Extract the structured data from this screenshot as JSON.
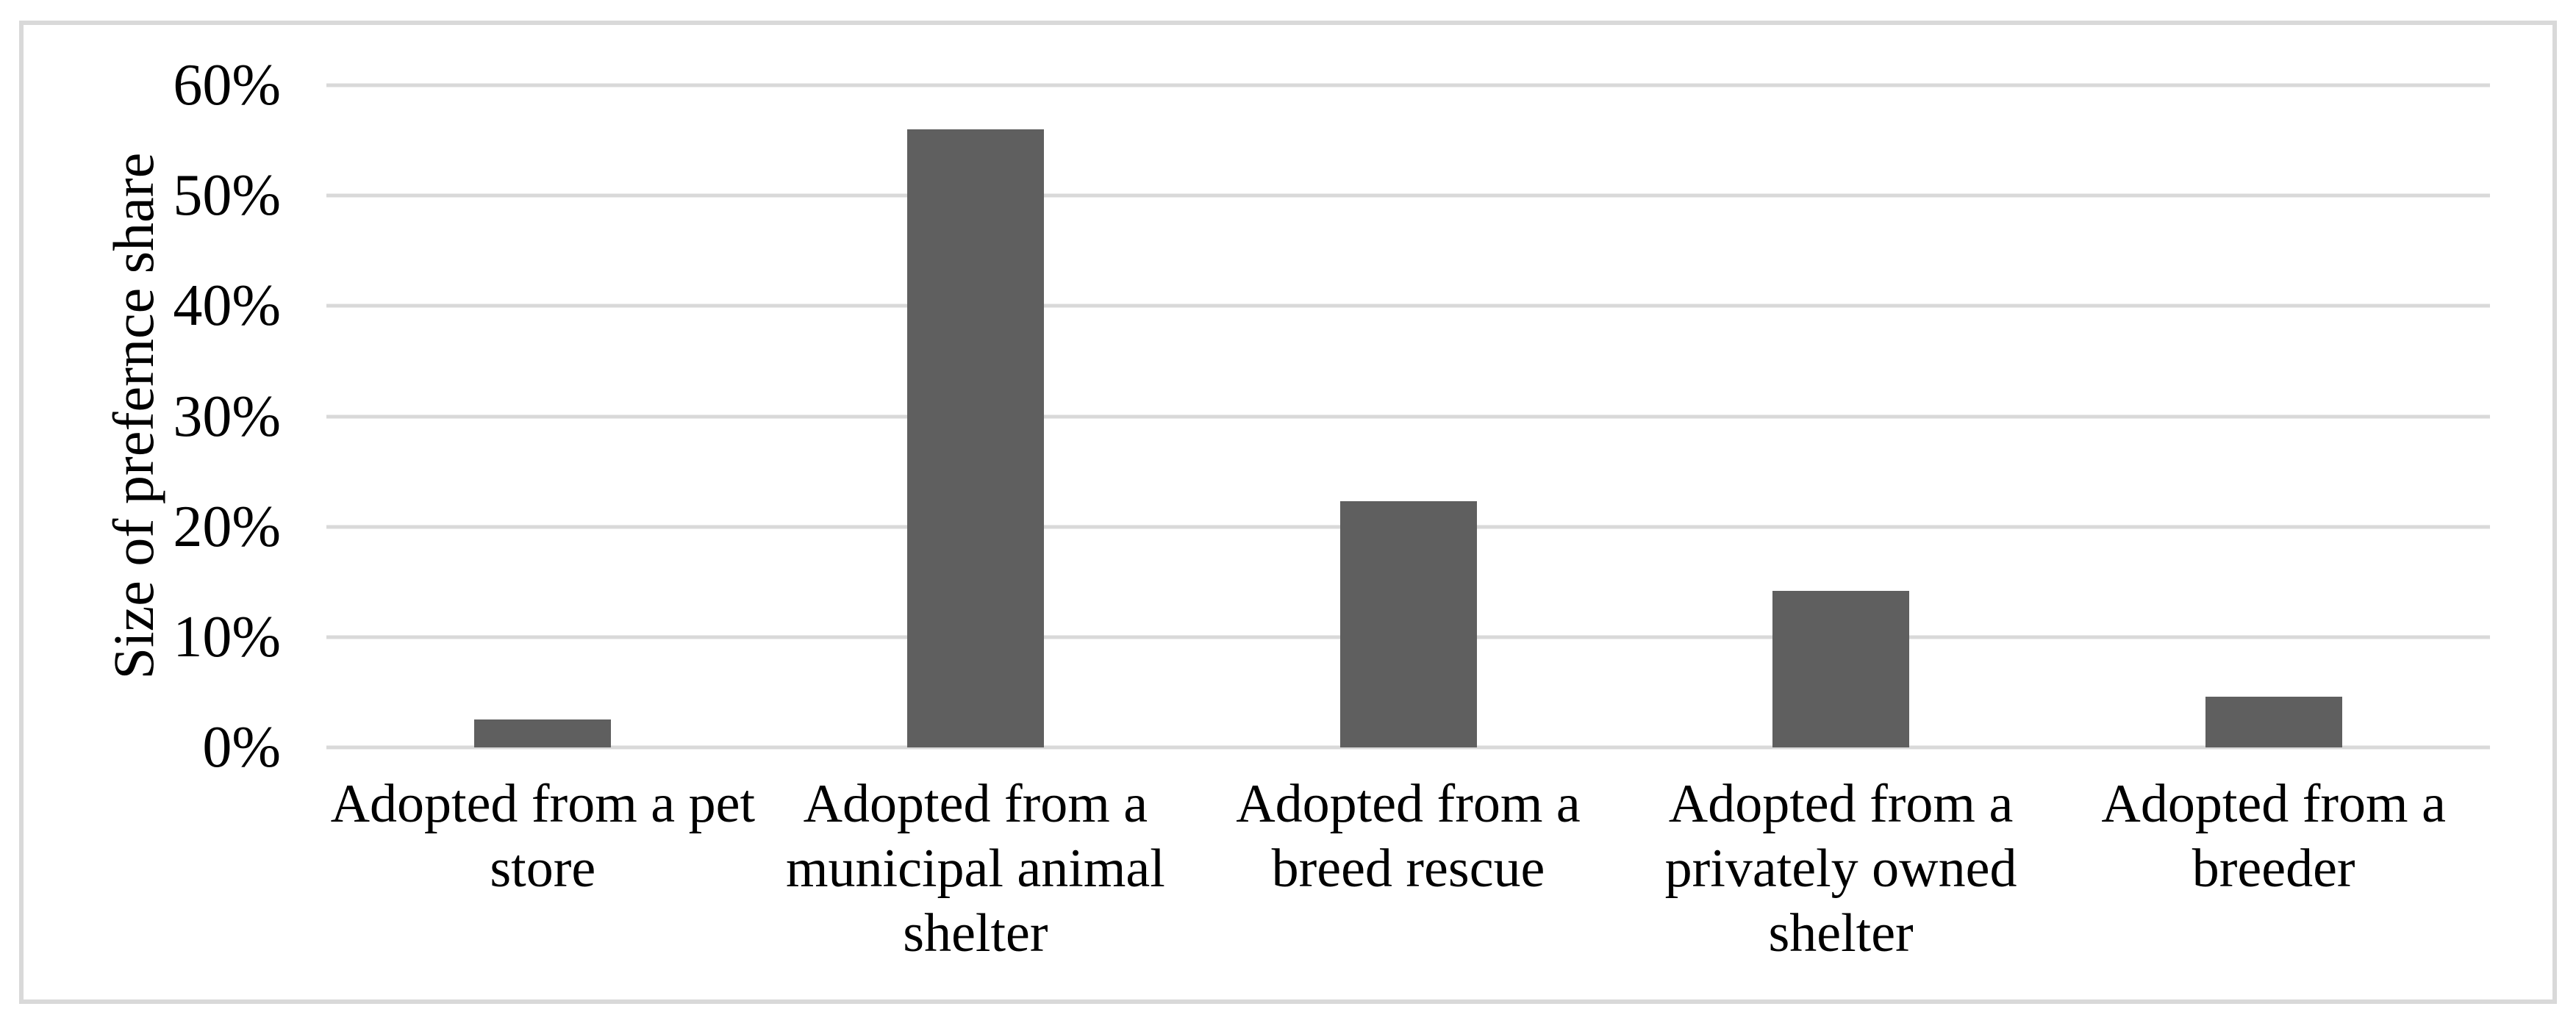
{
  "chart_data": {
    "type": "bar",
    "title": "",
    "categories": [
      "Adopted from a pet store",
      "Adopted from a municipal animal shelter",
      "Adopted from a breed rescue",
      "Adopted from a privately owned shelter",
      "Adopted from a breeder"
    ],
    "category_label_lines": [
      [
        "Adopted from a pet",
        "store"
      ],
      [
        "Adopted from a",
        "municipal animal",
        "shelter"
      ],
      [
        "Adopted from a",
        "breed rescue"
      ],
      [
        "Adopted from a",
        "privately owned",
        "shelter"
      ],
      [
        "Adopted from a",
        "breeder"
      ]
    ],
    "values": [
      2.5,
      56.0,
      22.3,
      14.2,
      4.6
    ],
    "ylabel": "Size of prefernce share",
    "xlabel": "",
    "yticks": [
      0,
      10,
      20,
      30,
      40,
      50,
      60
    ],
    "ytick_labels": [
      "0%",
      "10%",
      "20%",
      "30%",
      "40%",
      "50%",
      "60%"
    ],
    "ylim": [
      0,
      60
    ],
    "grid": "horizontal",
    "legend": "none",
    "bar_color": "#5f5f5f",
    "gridline_color": "#d9d9d9",
    "frame_color": "#d9d9d9",
    "background": "#ffffff"
  }
}
